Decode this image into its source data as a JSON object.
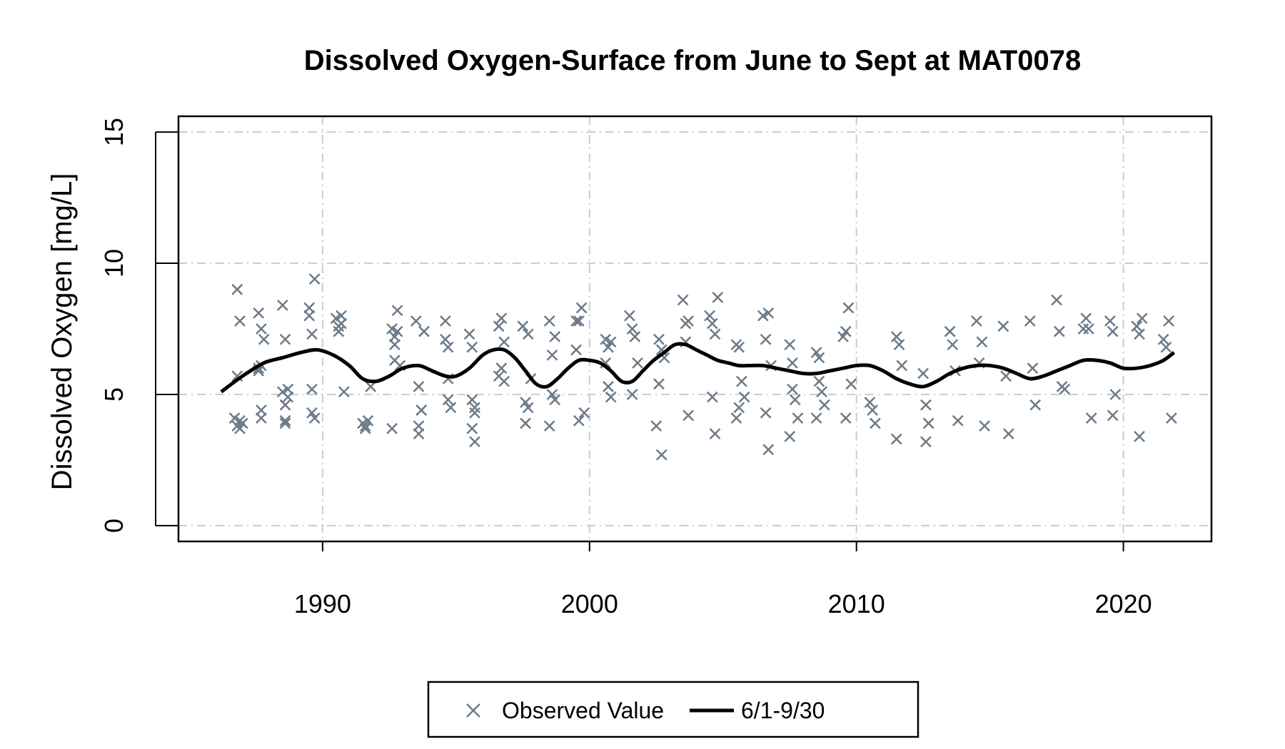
{
  "chart_data": {
    "type": "scatter",
    "title": "Dissolved Oxygen-Surface from June to Sept at MAT0078",
    "xlabel": "",
    "ylabel": "Dissolved Oxygen [mg/L]",
    "xlim": [
      1984.6,
      2023.3
    ],
    "ylim": [
      -0.6,
      15.6
    ],
    "xticks": [
      1990,
      2000,
      2010,
      2020
    ],
    "yticks": [
      0,
      5,
      10,
      15
    ],
    "grid": true,
    "legend_position": "bottom",
    "colors": {
      "observed": "#6c7a89",
      "trend": "#000000",
      "grid": "#cccccc"
    },
    "series": [
      {
        "name": "Observed Value",
        "type": "scatter",
        "marker": "x",
        "x": [
          1986.7,
          1986.8,
          1986.9,
          1986.8,
          1986.9,
          1987.0,
          1986.8,
          1986.9,
          1987.6,
          1987.7,
          1987.6,
          1987.7,
          1987.7,
          1987.8,
          1987.6,
          1987.7,
          1988.5,
          1988.6,
          1988.5,
          1988.6,
          1988.6,
          1988.7,
          1988.7,
          1988.6,
          1989.5,
          1989.5,
          1989.6,
          1989.7,
          1989.6,
          1989.6,
          1989.7,
          1990.5,
          1990.6,
          1990.7,
          1990.6,
          1990.7,
          1990.8,
          1991.5,
          1991.6,
          1991.7,
          1991.6,
          1991.8,
          1992.6,
          1992.7,
          1992.8,
          1992.7,
          1992.8,
          1992.9,
          1992.6,
          1992.7,
          1993.5,
          1993.6,
          1993.7,
          1993.6,
          1993.8,
          1993.6,
          1993.7,
          1994.6,
          1994.7,
          1994.8,
          1994.6,
          1994.7,
          1994.7,
          1995.5,
          1995.6,
          1995.7,
          1995.6,
          1995.7,
          1995.6,
          1995.7,
          1996.6,
          1996.7,
          1996.8,
          1996.6,
          1996.7,
          1996.8,
          1997.5,
          1997.6,
          1997.7,
          1997.6,
          1997.7,
          1997.8,
          1998.5,
          1998.6,
          1998.7,
          1998.6,
          1998.7,
          1998.5,
          1999.5,
          1999.6,
          1999.7,
          1999.5,
          1999.6,
          1999.8,
          2000.6,
          2000.7,
          2000.8,
          2000.6,
          2000.7,
          2000.8,
          2001.5,
          2001.6,
          2001.7,
          2001.8,
          2001.6,
          2002.5,
          2002.6,
          2002.7,
          2002.8,
          2002.6,
          2002.7,
          2003.5,
          2003.6,
          2003.7,
          2003.6,
          2003.7,
          2004.5,
          2004.6,
          2004.7,
          2004.8,
          2004.6,
          2004.7,
          2005.5,
          2005.6,
          2005.7,
          2005.8,
          2005.6,
          2005.5,
          2006.5,
          2006.6,
          2006.7,
          2006.8,
          2006.6,
          2006.7,
          2007.5,
          2007.6,
          2007.7,
          2007.8,
          2007.6,
          2007.5,
          2008.5,
          2008.6,
          2008.7,
          2008.8,
          2008.6,
          2008.5,
          2009.5,
          2009.6,
          2009.7,
          2009.8,
          2009.6,
          2010.5,
          2010.6,
          2010.7,
          2011.5,
          2011.6,
          2011.7,
          2011.5,
          2012.5,
          2012.6,
          2012.7,
          2012.6,
          2013.5,
          2013.6,
          2013.7,
          2013.8,
          2014.5,
          2014.6,
          2014.7,
          2014.8,
          2015.5,
          2015.6,
          2015.7,
          2016.5,
          2016.6,
          2016.7,
          2017.5,
          2017.6,
          2017.7,
          2017.8,
          2018.5,
          2018.6,
          2018.7,
          2018.8,
          2019.5,
          2019.6,
          2019.7,
          2019.6,
          2020.5,
          2020.6,
          2020.7,
          2020.6,
          2021.5,
          2021.6,
          2021.7,
          2021.8
        ],
        "y": [
          4.1,
          3.8,
          3.7,
          9.0,
          7.8,
          3.9,
          5.7,
          4.0,
          8.1,
          7.5,
          6.0,
          4.4,
          4.1,
          7.1,
          5.9,
          6.1,
          8.4,
          7.1,
          5.1,
          4.0,
          4.6,
          4.9,
          5.2,
          3.9,
          8.3,
          8.0,
          7.3,
          9.4,
          5.2,
          4.3,
          4.1,
          7.9,
          7.6,
          8.0,
          7.4,
          7.7,
          5.1,
          3.9,
          3.8,
          4.0,
          3.7,
          5.3,
          7.5,
          6.9,
          7.4,
          6.3,
          8.2,
          6.1,
          3.7,
          7.2,
          7.8,
          5.3,
          4.4,
          3.5,
          7.4,
          3.8,
          4.4,
          7.1,
          4.8,
          4.5,
          7.8,
          6.8,
          5.6,
          7.3,
          4.8,
          3.2,
          6.8,
          4.5,
          3.7,
          4.3,
          7.6,
          6.0,
          7.0,
          5.7,
          7.9,
          5.5,
          7.6,
          4.7,
          4.5,
          3.9,
          7.3,
          5.6,
          7.8,
          6.5,
          7.2,
          5.0,
          4.8,
          3.8,
          7.8,
          7.8,
          8.3,
          6.7,
          4.0,
          4.3,
          7.1,
          6.8,
          7.0,
          6.2,
          5.3,
          4.9,
          8.0,
          7.5,
          7.2,
          6.2,
          5.0,
          3.8,
          7.1,
          6.7,
          6.4,
          5.4,
          2.7,
          8.6,
          7.7,
          7.8,
          7.0,
          4.2,
          8.0,
          7.7,
          7.3,
          8.7,
          4.9,
          3.5,
          6.9,
          6.8,
          5.5,
          4.9,
          4.5,
          4.1,
          8.0,
          7.1,
          8.1,
          6.1,
          4.3,
          2.9,
          6.9,
          6.2,
          4.8,
          4.1,
          5.2,
          3.4,
          6.6,
          6.4,
          5.1,
          4.6,
          5.5,
          4.1,
          7.2,
          7.4,
          8.3,
          5.4,
          4.1,
          4.7,
          4.4,
          3.9,
          7.2,
          6.9,
          6.1,
          3.3,
          5.8,
          4.6,
          3.9,
          3.2,
          7.4,
          6.9,
          5.9,
          4.0,
          7.8,
          6.2,
          7.0,
          3.8,
          7.6,
          5.7,
          3.5,
          7.8,
          6.0,
          4.6,
          8.6,
          7.4,
          5.3,
          5.2,
          7.5,
          7.9,
          7.5,
          4.1,
          7.8,
          7.4,
          5.0,
          4.2,
          7.6,
          7.3,
          7.9,
          3.4,
          7.1,
          6.8,
          7.8,
          4.1
        ]
      },
      {
        "name": "6/1-9/30",
        "type": "line",
        "x": [
          1986.2,
          1987.0,
          1987.8,
          1988.5,
          1989.2,
          1989.8,
          1990.4,
          1991.0,
          1991.5,
          1992.0,
          1992.5,
          1993.0,
          1993.6,
          1994.1,
          1994.6,
          1995.0,
          1995.5,
          1996.0,
          1996.4,
          1996.8,
          1997.2,
          1997.6,
          1998.0,
          1998.4,
          1998.8,
          1999.2,
          1999.6,
          2000.0,
          2000.4,
          2000.8,
          2001.2,
          2001.6,
          2002.0,
          2002.4,
          2002.8,
          2003.2,
          2003.6,
          2004.0,
          2004.4,
          2004.8,
          2005.2,
          2005.6,
          2006.0,
          2006.5,
          2007.0,
          2007.5,
          2008.0,
          2008.5,
          2009.0,
          2009.5,
          2010.0,
          2010.5,
          2011.0,
          2011.5,
          2012.0,
          2012.5,
          2013.0,
          2013.5,
          2014.0,
          2014.5,
          2015.0,
          2015.5,
          2016.0,
          2016.5,
          2017.0,
          2017.5,
          2018.0,
          2018.5,
          2019.0,
          2019.5,
          2020.0,
          2020.5,
          2021.0,
          2021.5,
          2021.9
        ],
        "y": [
          5.1,
          5.7,
          6.2,
          6.4,
          6.6,
          6.7,
          6.5,
          6.1,
          5.6,
          5.5,
          5.7,
          6.0,
          6.1,
          5.9,
          5.7,
          5.7,
          6.0,
          6.5,
          6.7,
          6.7,
          6.4,
          5.9,
          5.4,
          5.3,
          5.6,
          6.0,
          6.3,
          6.3,
          6.2,
          5.9,
          5.5,
          5.5,
          5.9,
          6.3,
          6.6,
          6.9,
          6.9,
          6.7,
          6.5,
          6.3,
          6.2,
          6.1,
          6.1,
          6.1,
          6.0,
          5.9,
          5.8,
          5.8,
          5.9,
          6.0,
          6.1,
          6.1,
          5.9,
          5.6,
          5.4,
          5.3,
          5.5,
          5.8,
          6.0,
          6.1,
          6.1,
          6.0,
          5.8,
          5.6,
          5.7,
          5.9,
          6.1,
          6.3,
          6.3,
          6.2,
          6.0,
          6.0,
          6.1,
          6.3,
          6.6
        ]
      }
    ]
  }
}
